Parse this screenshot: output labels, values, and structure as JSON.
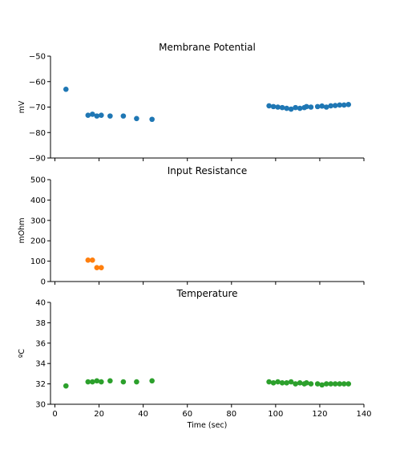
{
  "chart_data": [
    {
      "type": "scatter",
      "title": "Membrane Potential",
      "ylabel": "mV",
      "xlabel": "",
      "ylim": [
        -90,
        -50
      ],
      "yticks": [
        -90,
        -80,
        -70,
        -60,
        -50
      ],
      "xlim": [
        -2,
        140
      ],
      "xticks": [
        0,
        20,
        40,
        60,
        80,
        100,
        120,
        140
      ],
      "show_x_tick_labels": false,
      "grid": false,
      "color": "#1f77b4",
      "points": [
        [
          5,
          -63
        ],
        [
          15,
          -73.2
        ],
        [
          17,
          -72.8
        ],
        [
          19,
          -73.5
        ],
        [
          21,
          -73.2
        ],
        [
          25,
          -73.5
        ],
        [
          31,
          -73.5
        ],
        [
          37,
          -74.5
        ],
        [
          44,
          -74.8
        ],
        [
          97,
          -69.5
        ],
        [
          99,
          -69.8
        ],
        [
          101,
          -70.0
        ],
        [
          103,
          -70.2
        ],
        [
          105,
          -70.5
        ],
        [
          107,
          -70.8
        ],
        [
          109,
          -70.2
        ],
        [
          111,
          -70.5
        ],
        [
          113,
          -70.2
        ],
        [
          114,
          -69.8
        ],
        [
          116,
          -70.0
        ],
        [
          119,
          -69.8
        ],
        [
          121,
          -69.6
        ],
        [
          123,
          -70.0
        ],
        [
          125,
          -69.5
        ],
        [
          127,
          -69.4
        ],
        [
          129,
          -69.2
        ],
        [
          131,
          -69.2
        ],
        [
          133,
          -69.0
        ]
      ]
    },
    {
      "type": "scatter",
      "title": "Input Resistance",
      "ylabel": "mOhm",
      "xlabel": "",
      "ylim": [
        0,
        500
      ],
      "yticks": [
        0,
        100,
        200,
        300,
        400,
        500
      ],
      "xlim": [
        -2,
        140
      ],
      "xticks": [
        0,
        20,
        40,
        60,
        80,
        100,
        120,
        140
      ],
      "show_x_tick_labels": false,
      "grid": false,
      "color": "#ff7f0e",
      "points": [
        [
          15,
          105
        ],
        [
          17,
          105
        ],
        [
          19,
          68
        ],
        [
          21,
          68
        ]
      ]
    },
    {
      "type": "scatter",
      "title": "Temperature",
      "ylabel": "ºC",
      "xlabel": "Time (sec)",
      "ylim": [
        30,
        40
      ],
      "yticks": [
        30,
        32,
        34,
        36,
        38,
        40
      ],
      "xlim": [
        -2,
        140
      ],
      "xticks": [
        0,
        20,
        40,
        60,
        80,
        100,
        120,
        140
      ],
      "show_x_tick_labels": true,
      "grid": false,
      "color": "#2ca02c",
      "points": [
        [
          5,
          31.8
        ],
        [
          15,
          32.2
        ],
        [
          17,
          32.2
        ],
        [
          19,
          32.3
        ],
        [
          21,
          32.2
        ],
        [
          25,
          32.3
        ],
        [
          31,
          32.2
        ],
        [
          37,
          32.2
        ],
        [
          44,
          32.3
        ],
        [
          97,
          32.2
        ],
        [
          99,
          32.1
        ],
        [
          101,
          32.2
        ],
        [
          103,
          32.1
        ],
        [
          105,
          32.1
        ],
        [
          107,
          32.2
        ],
        [
          109,
          32.0
        ],
        [
          111,
          32.1
        ],
        [
          113,
          32.0
        ],
        [
          114,
          32.1
        ],
        [
          116,
          32.0
        ],
        [
          119,
          32.0
        ],
        [
          121,
          31.9
        ],
        [
          123,
          32.0
        ],
        [
          125,
          32.0
        ],
        [
          127,
          32.0
        ],
        [
          129,
          32.0
        ],
        [
          131,
          32.0
        ],
        [
          133,
          32.0
        ]
      ]
    }
  ]
}
